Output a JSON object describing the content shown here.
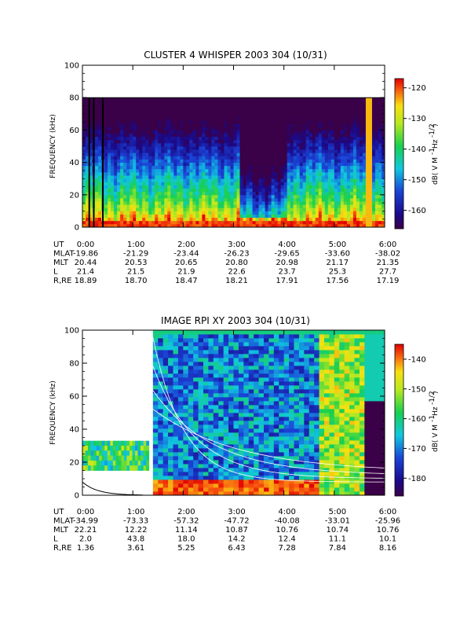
{
  "chart_data": [
    {
      "type": "heatmap",
      "title": "CLUSTER 4 WHISPER 2003 304 (10/31)",
      "ylabel": "FREQUENCY (kHz)",
      "ylim": [
        0,
        100
      ],
      "yticks": [
        "0",
        "20",
        "40",
        "60",
        "80",
        "100"
      ],
      "xticks": [
        "0:00",
        "1:00",
        "2:00",
        "3:00",
        "4:00",
        "5:00",
        "6:00"
      ],
      "data_top_khz": 80,
      "colorbar": {
        "label": "dB( V M⁻¹ Hz⁻¹ᐟ²)",
        "label_text": "dB( V M",
        "range": [
          -166,
          -117
        ],
        "ticks": [
          "-120",
          "-130",
          "-140",
          "-150",
          "-160"
        ],
        "tick_values": [
          -120,
          -130,
          -140,
          -150,
          -160
        ]
      },
      "ephemeris": {
        "labels": [
          "UT",
          "MLAT",
          "MLT",
          "L",
          "R,RE"
        ],
        "rows": [
          [
            "0:00",
            "1:00",
            "2:00",
            "3:00",
            "4:00",
            "5:00",
            "6:00"
          ],
          [
            "-19.86",
            "-21.29",
            "-23.44",
            "-26.23",
            "-29.65",
            "-33.60",
            "-38.02"
          ],
          [
            "20.44",
            "20.53",
            "20.65",
            "20.80",
            "20.98",
            "21.17",
            "21.35"
          ],
          [
            "21.4",
            "21.5",
            "21.9",
            "22.6",
            "23.7",
            "25.3",
            "27.7"
          ],
          [
            "18.89",
            "18.70",
            "18.47",
            "18.21",
            "17.91",
            "17.56",
            "17.19"
          ]
        ]
      }
    },
    {
      "type": "heatmap",
      "title": "IMAGE RPI XY 2003 304 (10/31)",
      "ylabel": "FREQUENCY (kHz)",
      "ylim": [
        0,
        100
      ],
      "yticks": [
        "0",
        "20",
        "40",
        "60",
        "80",
        "100"
      ],
      "xticks": [
        "0:00",
        "1:00",
        "2:00",
        "3:00",
        "4:00",
        "5:00",
        "6:00"
      ],
      "colorbar": {
        "label_text": "dB( V M",
        "range": [
          -186,
          -135
        ],
        "ticks": [
          "-140",
          "-150",
          "-160",
          "-170",
          "-180"
        ],
        "tick_values": [
          -140,
          -150,
          -160,
          -170,
          -180
        ]
      },
      "ephemeris": {
        "labels": [
          "UT",
          "MLAT",
          "MLT",
          "L",
          "R,RE"
        ],
        "rows": [
          [
            "0:00",
            "1:00",
            "2:00",
            "3:00",
            "4:00",
            "5:00",
            "6:00"
          ],
          [
            "-34.99",
            "-73.33",
            "-57.32",
            "-47.72",
            "-40.08",
            "-33.01",
            "-25.96"
          ],
          [
            "22.21",
            "12.22",
            "11.14",
            "10.87",
            "10.76",
            "10.74",
            "10.76"
          ],
          [
            "2.0",
            "43.8",
            "18.0",
            "14.2",
            "12.4",
            "11.1",
            "10.1"
          ],
          [
            "1.36",
            "3.61",
            "5.25",
            "6.43",
            "7.28",
            "7.84",
            "8.16"
          ]
        ]
      }
    }
  ],
  "colors": {
    "axis": "#000000",
    "background": "#ffffff"
  }
}
